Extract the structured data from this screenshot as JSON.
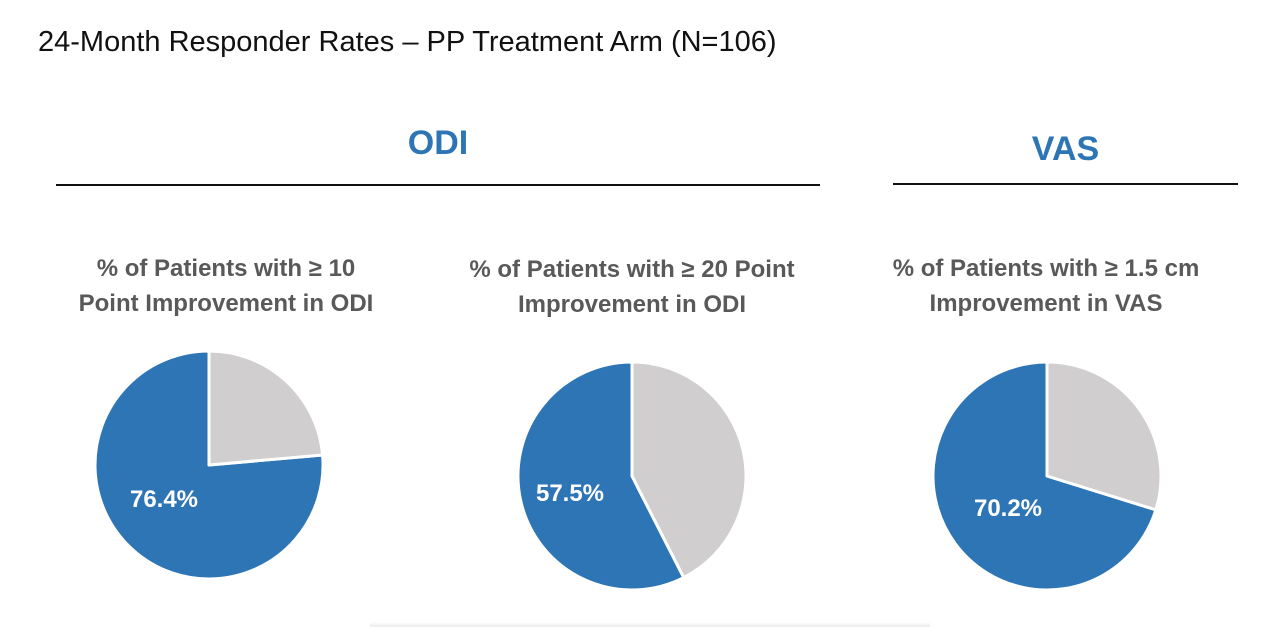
{
  "title": "24-Month Responder Rates – PP Treatment Arm (N=106)",
  "groups": {
    "odi": "ODI",
    "vas": "VAS"
  },
  "colors": {
    "primary": "#2e75b6",
    "remainder": "#d0cece",
    "text_gray": "#595959"
  },
  "chart_data": [
    {
      "type": "pie",
      "title_lines": [
        "% of Patients with ≥ 10",
        "Point Improvement in ODI"
      ],
      "label": "76.4%",
      "slices": [
        {
          "value": 76.4,
          "color": "#2e75b6"
        },
        {
          "value": 23.6,
          "color": "#d0cece"
        }
      ]
    },
    {
      "type": "pie",
      "title_lines": [
        "% of Patients with ≥ 20 Point",
        "Improvement in ODI"
      ],
      "label": "57.5%",
      "slices": [
        {
          "value": 57.5,
          "color": "#2e75b6"
        },
        {
          "value": 42.5,
          "color": "#d0cece"
        }
      ]
    },
    {
      "type": "pie",
      "title_lines": [
        "% of Patients with ≥ 1.5 cm",
        "Improvement in VAS"
      ],
      "label": "70.2%",
      "slices": [
        {
          "value": 70.2,
          "color": "#2e75b6"
        },
        {
          "value": 29.8,
          "color": "#d0cece"
        }
      ]
    }
  ]
}
